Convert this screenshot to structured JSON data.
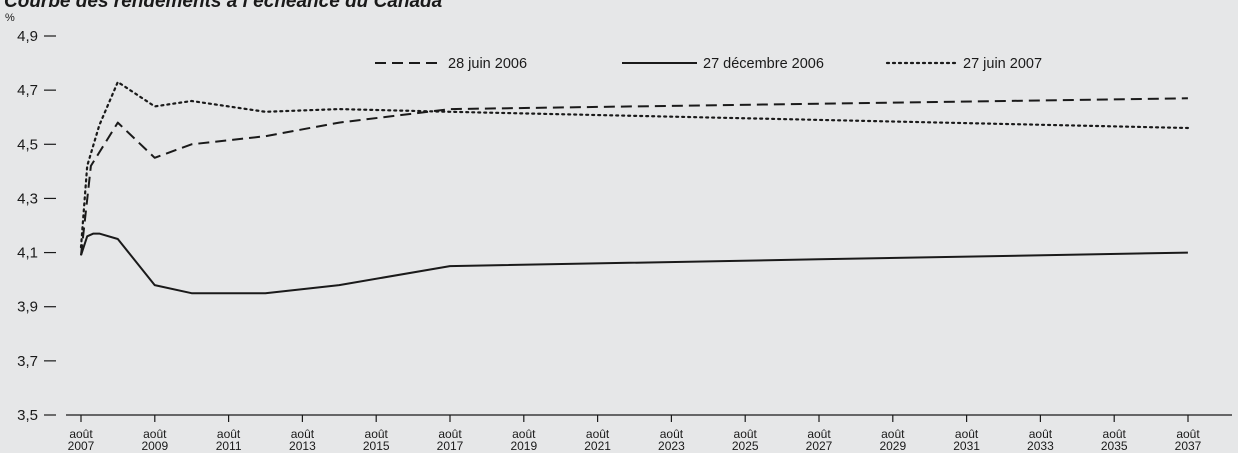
{
  "chart_data": {
    "type": "line",
    "title": "Courbe des rendements à l’échéance du Canada",
    "ylabel": "%",
    "ylim": [
      3.5,
      4.9
    ],
    "yticks": [
      "4,9",
      "4,7",
      "4,5",
      "4,3",
      "4,1",
      "3,9",
      "3,7",
      "3,5"
    ],
    "ytick_values": [
      4.9,
      4.7,
      4.5,
      4.3,
      4.1,
      3.9,
      3.7,
      3.5
    ],
    "xlim": [
      2007.583,
      2037.583
    ],
    "xtick_values": [
      2007.583,
      2009.583,
      2011.583,
      2013.583,
      2015.583,
      2017.583,
      2019.583,
      2021.583,
      2023.583,
      2025.583,
      2027.583,
      2029.583,
      2031.583,
      2033.583,
      2035.583,
      2037.583
    ],
    "xticks": [
      [
        "août",
        "2007"
      ],
      [
        "août",
        "2009"
      ],
      [
        "août",
        "2011"
      ],
      [
        "août",
        "2013"
      ],
      [
        "août",
        "2015"
      ],
      [
        "août",
        "2017"
      ],
      [
        "août",
        "2019"
      ],
      [
        "août",
        "2021"
      ],
      [
        "août",
        "2023"
      ],
      [
        "août",
        "2025"
      ],
      [
        "août",
        "2027"
      ],
      [
        "août",
        "2029"
      ],
      [
        "août",
        "2031"
      ],
      [
        "août",
        "2033"
      ],
      [
        "août",
        "2035"
      ],
      [
        "août",
        "2037"
      ]
    ],
    "grid": false,
    "legend_position": "top-right",
    "series": [
      {
        "name": "28 juin 2006",
        "style": "dashed",
        "color": "#1a1a1a",
        "x": [
          2007.583,
          2007.85,
          2008.08,
          2008.58,
          2009.58,
          2010.58,
          2012.58,
          2014.58,
          2017.58,
          2027.58,
          2037.58
        ],
        "y": [
          4.09,
          4.42,
          4.47,
          4.58,
          4.45,
          4.5,
          4.53,
          4.58,
          4.63,
          4.65,
          4.67
        ]
      },
      {
        "name": "27 décembre 2006",
        "style": "solid",
        "color": "#1a1a1a",
        "x": [
          2007.583,
          2007.75,
          2007.92,
          2008.08,
          2008.58,
          2009.58,
          2010.58,
          2012.58,
          2014.58,
          2017.58,
          2027.58,
          2037.58
        ],
        "y": [
          4.09,
          4.16,
          4.17,
          4.17,
          4.15,
          3.98,
          3.95,
          3.95,
          3.98,
          4.05,
          4.075,
          4.1
        ]
      },
      {
        "name": "27 juin 2007",
        "style": "dotted",
        "color": "#1a1a1a",
        "x": [
          2007.583,
          2007.75,
          2008.08,
          2008.58,
          2009.58,
          2010.58,
          2012.58,
          2014.58,
          2017.58,
          2027.58,
          2037.58
        ],
        "y": [
          4.12,
          4.42,
          4.57,
          4.73,
          4.64,
          4.66,
          4.62,
          4.63,
          4.62,
          4.59,
          4.56
        ]
      }
    ]
  }
}
